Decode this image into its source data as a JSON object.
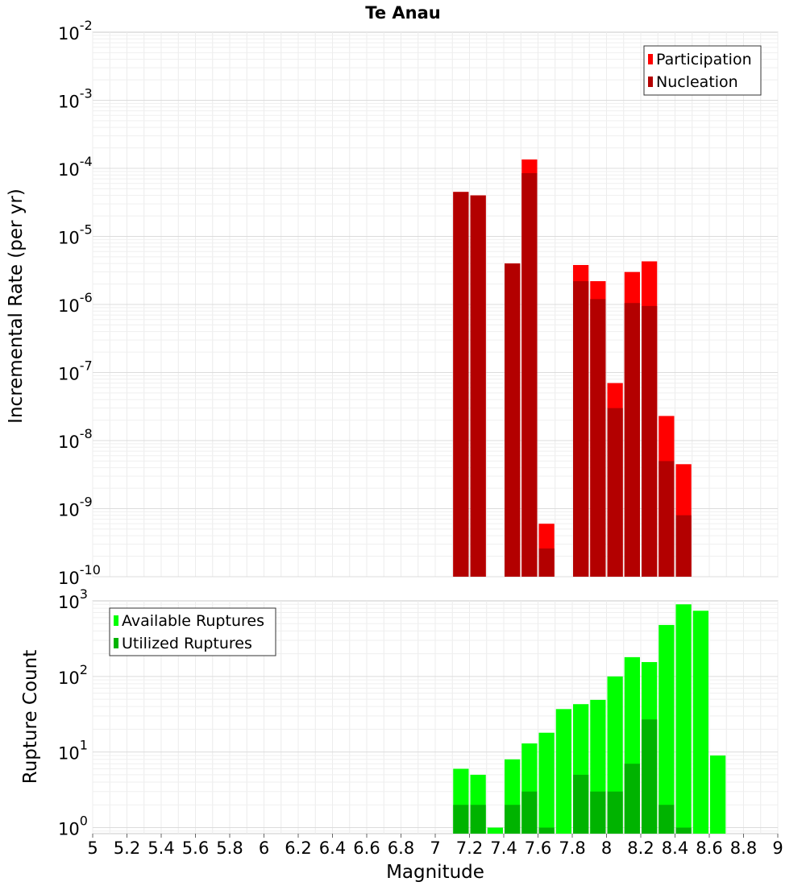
{
  "chart_data": [
    {
      "type": "bar",
      "title": "Te Anau",
      "ylabel": "Incremental Rate (per yr)",
      "xlabel": "",
      "y_scale": "log",
      "ylim_exp": [
        -10,
        -2
      ],
      "y_tick_base": "10",
      "y_tick_exponents": [
        "-2",
        "-3",
        "-4",
        "-5",
        "-6",
        "-7",
        "-8",
        "-9",
        "-10"
      ],
      "xlim": [
        5,
        9
      ],
      "legend": [
        {
          "name": "Participation",
          "color": "#ff0000"
        },
        {
          "name": "Nucleation",
          "color": "#b30000"
        }
      ],
      "legend_position": "top-right",
      "series": [
        {
          "name": "Participation",
          "x": [
            7.15,
            7.25,
            7.45,
            7.55,
            7.65,
            7.85,
            7.95,
            8.05,
            8.15,
            8.25,
            8.35,
            8.45
          ],
          "values": [
            4.5e-05,
            4e-05,
            4e-06,
            0.000135,
            6e-10,
            3.8e-06,
            2.2e-06,
            7e-08,
            3e-06,
            4.3e-06,
            2.3e-08,
            4.5e-09
          ]
        },
        {
          "name": "Nucleation",
          "x": [
            7.15,
            7.25,
            7.45,
            7.55,
            7.65,
            7.85,
            7.95,
            8.05,
            8.15,
            8.25,
            8.35,
            8.45
          ],
          "values": [
            4.5e-05,
            4e-05,
            4e-06,
            8.5e-05,
            2.6e-10,
            2.2e-06,
            1.2e-06,
            3e-08,
            1.05e-06,
            9.5e-07,
            5e-09,
            8e-10
          ]
        }
      ]
    },
    {
      "type": "bar",
      "title": "",
      "ylabel": "Rupture Count",
      "xlabel": "Magnitude",
      "y_scale": "log",
      "ylim_exp": [
        -0.08,
        3
      ],
      "y_tick_base": "10",
      "y_tick_exponents": [
        "0",
        "1",
        "2",
        "3"
      ],
      "xlim": [
        5,
        9
      ],
      "x_tick_labels": [
        "5",
        "5.2",
        "5.4",
        "5.6",
        "5.8",
        "6",
        "6.2",
        "6.4",
        "6.6",
        "6.8",
        "7",
        "7.2",
        "7.4",
        "7.6",
        "7.8",
        "8",
        "8.2",
        "8.4",
        "8.6",
        "8.8",
        "9"
      ],
      "legend": [
        {
          "name": "Available Ruptures",
          "color": "#00ff00"
        },
        {
          "name": "Utilized Ruptures",
          "color": "#00b300"
        }
      ],
      "legend_position": "top-left",
      "series": [
        {
          "name": "Available Ruptures",
          "x": [
            7.15,
            7.25,
            7.35,
            7.45,
            7.55,
            7.65,
            7.75,
            7.85,
            7.95,
            8.05,
            8.15,
            8.25,
            8.35,
            8.45,
            8.55,
            8.65
          ],
          "values": [
            6,
            5,
            1,
            8,
            13,
            18,
            37,
            43,
            49,
            100,
            180,
            155,
            480,
            900,
            740,
            9
          ]
        },
        {
          "name": "Utilized Ruptures",
          "x": [
            7.15,
            7.25,
            7.35,
            7.45,
            7.55,
            7.65,
            7.75,
            7.85,
            7.95,
            8.05,
            8.15,
            8.25,
            8.35,
            8.45,
            8.55,
            8.65
          ],
          "values": [
            2,
            2,
            0,
            2,
            3,
            1,
            0,
            5,
            3,
            3,
            7,
            27,
            2,
            1,
            0,
            0
          ]
        }
      ]
    }
  ]
}
